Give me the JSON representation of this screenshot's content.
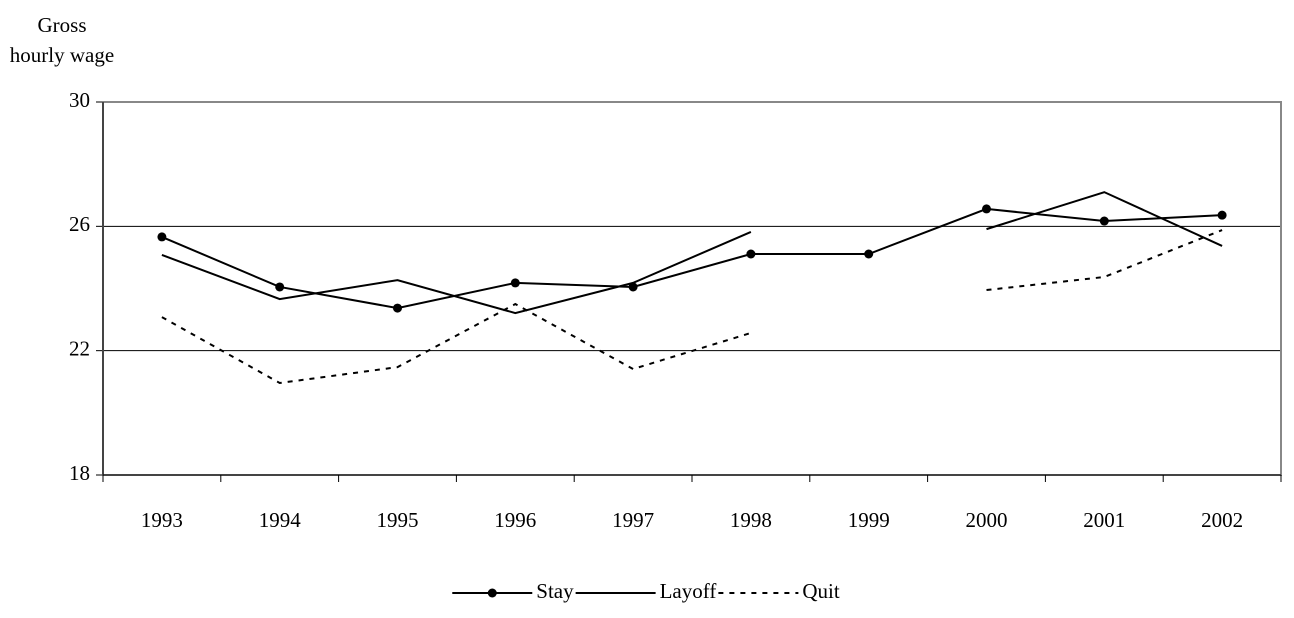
{
  "chart_data": {
    "type": "line",
    "y_label": [
      "Gross",
      "hourly wage"
    ],
    "categories": [
      "1993",
      "1994",
      "1995",
      "1996",
      "1997",
      "1998",
      "1999",
      "2000",
      "2001",
      "2002"
    ],
    "series": [
      {
        "name": "Stay",
        "color": "#000000",
        "dash": "none",
        "marker": "circle",
        "values": [
          25.66,
          24.05,
          23.37,
          24.18,
          24.05,
          25.11,
          25.11,
          26.56,
          26.17,
          26.36
        ]
      },
      {
        "name": "Layoff",
        "color": "#000000",
        "dash": "none",
        "marker": "none",
        "values": [
          25.08,
          23.66,
          24.27,
          23.21,
          24.18,
          25.82,
          null,
          25.91,
          27.1,
          25.37
        ]
      },
      {
        "name": "Quit",
        "color": "#000000",
        "dash": "dotted",
        "marker": "none",
        "values": [
          23.08,
          20.96,
          21.47,
          23.5,
          21.41,
          22.57,
          null,
          23.95,
          24.37,
          25.88
        ]
      }
    ],
    "ylim": [
      18,
      30
    ],
    "yticks": [
      18,
      22,
      26,
      30
    ],
    "grid": true,
    "legend": "bottom"
  }
}
